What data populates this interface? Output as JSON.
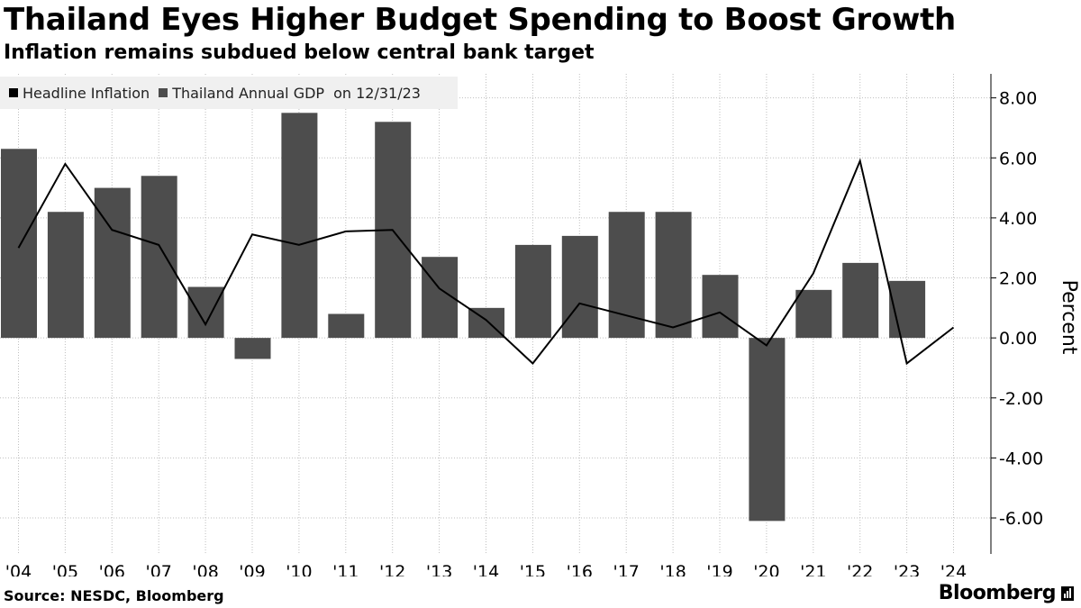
{
  "header": {
    "title": "Thailand Eyes Higher Budget Spending to Boost Growth",
    "subtitle": "Inflation remains subdued below central bank target"
  },
  "legend": {
    "series1": "Headline Inflation",
    "series2": "Thailand Annual GDP",
    "date": "on 12/31/23"
  },
  "footer": {
    "source": "Source: NESDC, Bloomberg",
    "brand": "Bloomberg"
  },
  "colors": {
    "bar": "#4d4d4d",
    "line": "#000000",
    "grid": "#bfbfbf"
  },
  "chart_data": {
    "type": "bar",
    "title": "Thailand Eyes Higher Budget Spending to Boost Growth",
    "subtitle": "Inflation remains subdued below central bank target",
    "categories": [
      "'04",
      "'05",
      "'06",
      "'07",
      "'08",
      "'09",
      "'10",
      "'11",
      "'12",
      "'13",
      "'14",
      "'15",
      "'16",
      "'17",
      "'18",
      "'19",
      "'20",
      "'21",
      "'22",
      "'23",
      "'24"
    ],
    "ylabel": "Percent",
    "ylim": [
      -7.2,
      8.8
    ],
    "yticks": [
      8,
      6,
      4,
      2,
      0,
      -2,
      -4,
      -6
    ],
    "ytick_labels": [
      "8.00",
      "6.00",
      "4.00",
      "2.00",
      "0.00",
      "-2.00",
      "-4.00",
      "-6.00"
    ],
    "legend_position": "top-left",
    "grid": true,
    "series": [
      {
        "name": "Thailand Annual GDP",
        "kind": "bar",
        "values": [
          6.3,
          4.2,
          5.0,
          5.4,
          1.7,
          -0.7,
          7.5,
          0.8,
          7.2,
          2.7,
          1.0,
          3.1,
          3.4,
          4.2,
          4.2,
          2.1,
          -6.1,
          1.6,
          2.5,
          1.9,
          null
        ]
      },
      {
        "name": "Headline Inflation",
        "kind": "line",
        "values": [
          3.0,
          5.8,
          3.6,
          3.1,
          0.45,
          3.45,
          3.1,
          3.55,
          3.6,
          1.65,
          0.6,
          -0.85,
          1.15,
          0.75,
          0.35,
          0.85,
          -0.25,
          2.15,
          5.9,
          -0.85,
          0.35
        ]
      }
    ]
  }
}
